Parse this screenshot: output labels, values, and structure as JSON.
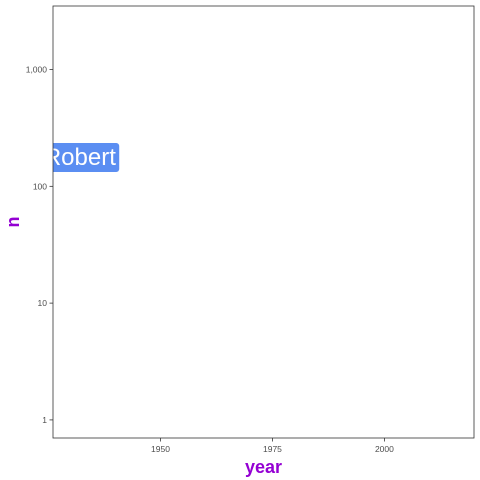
{
  "chart_data": {
    "type": "scatter",
    "title": "",
    "xlabel": "year",
    "ylabel": "n",
    "xlim": [
      1926,
      2020
    ],
    "ylim": [
      0.7,
      3500
    ],
    "yscale": "log",
    "grid": false,
    "x_ticks": [
      {
        "value": 1950,
        "label": "1950"
      },
      {
        "value": 1975,
        "label": "1975"
      },
      {
        "value": 2000,
        "label": "2000"
      }
    ],
    "y_ticks": [
      {
        "value": 1,
        "label": "1"
      },
      {
        "value": 10,
        "label": "10"
      },
      {
        "value": 100,
        "label": "100"
      },
      {
        "value": 1000,
        "label": "1,000"
      }
    ],
    "points": [
      {
        "x": 1932,
        "y": 180,
        "label": "Robert",
        "color": "#5b8ef2"
      }
    ],
    "colors": {
      "axis_title": "#9400d3",
      "panel_border": "#333333",
      "label_fill": "#5b8ef2"
    }
  }
}
